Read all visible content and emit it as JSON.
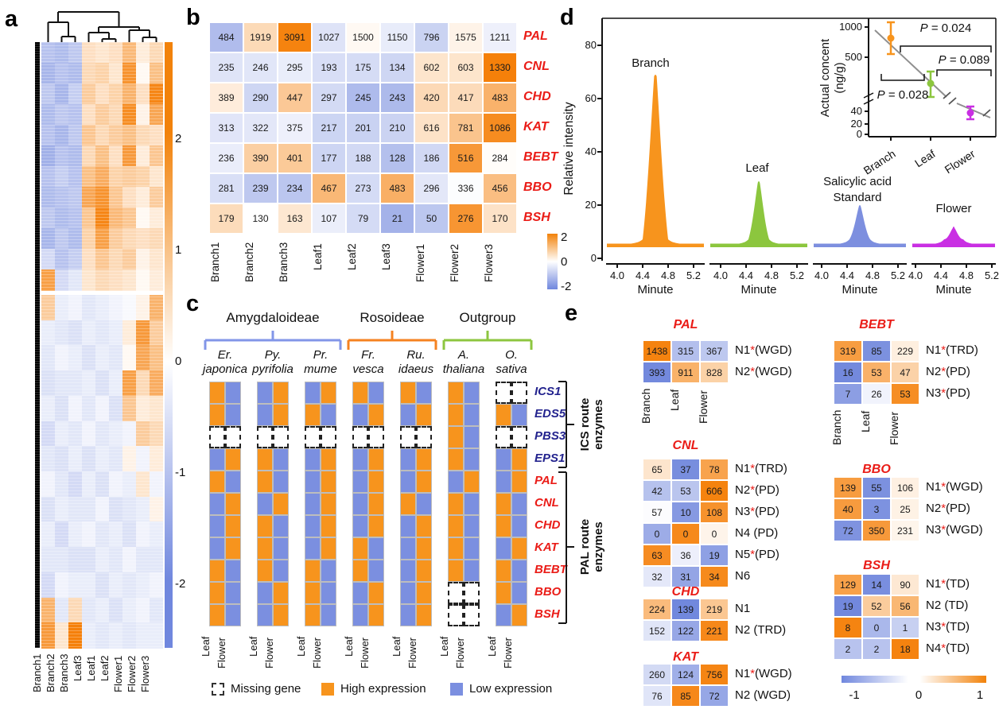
{
  "figure": {
    "panel_a": {
      "label": "a",
      "type": "clustered gene-expression heatmap with column dendrogram",
      "columns": [
        "Branch1",
        "Branch2",
        "Branch3",
        "Leaf3",
        "Leaf1",
        "Leaf2",
        "Flower1",
        "Flower2",
        "Flower3"
      ],
      "colorbar_ticks": [
        "2",
        "1",
        "0",
        "-1",
        "-2"
      ],
      "upper_rows": [
        [
          -1.0,
          -1.1,
          -0.9,
          0.5,
          0.4,
          0.5,
          1.1,
          0.3,
          0.6
        ],
        [
          -1.2,
          -1.0,
          -1.1,
          0.6,
          0.7,
          0.4,
          1.7,
          0.1,
          1.0
        ],
        [
          -0.9,
          -1.2,
          -0.8,
          0.8,
          0.5,
          0.7,
          1.2,
          0.5,
          1.9
        ],
        [
          -1.1,
          -0.9,
          -1.0,
          0.5,
          0.8,
          0.6,
          1.8,
          0.2,
          1.4
        ],
        [
          -1.0,
          -1.2,
          -0.9,
          0.9,
          0.6,
          0.8,
          1.0,
          0.6,
          0.5
        ],
        [
          -1.3,
          -1.0,
          -1.1,
          0.6,
          1.0,
          0.5,
          1.6,
          0.3,
          0.9
        ],
        [
          -1.0,
          -0.8,
          -1.0,
          1.0,
          1.3,
          0.7,
          0.8,
          0.7,
          0.4
        ],
        [
          -1.1,
          -1.0,
          -0.9,
          1.4,
          1.7,
          0.9,
          0.5,
          0.3,
          0.8
        ],
        [
          -0.9,
          -1.1,
          -1.0,
          0.9,
          1.9,
          1.1,
          0.9,
          0.1,
          0.3
        ],
        [
          -1.2,
          -0.9,
          -1.1,
          0.7,
          1.5,
          0.8,
          0.6,
          0.5,
          0.6
        ],
        [
          -0.6,
          -1.0,
          -0.8,
          0.5,
          0.9,
          0.6,
          0.8,
          0.2,
          0.4
        ],
        [
          1.5,
          -0.6,
          -0.4,
          0.4,
          0.6,
          0.5,
          0.4,
          0.1,
          0.3
        ]
      ],
      "lower_rows": [
        [
          0.8,
          -0.3,
          -0.2,
          -0.4,
          -0.3,
          -0.2,
          -0.1,
          0.2,
          1.2
        ],
        [
          -0.3,
          -0.4,
          -0.5,
          -0.3,
          -0.4,
          -0.3,
          0.3,
          1.6,
          0.8
        ],
        [
          -0.4,
          -0.2,
          -0.3,
          -0.5,
          -0.3,
          -0.4,
          0.1,
          1.4,
          1.0
        ],
        [
          -0.5,
          -0.4,
          -0.4,
          -0.3,
          -0.5,
          -0.3,
          1.5,
          0.6,
          1.3
        ],
        [
          -0.3,
          -0.5,
          -0.2,
          -0.4,
          -0.2,
          -0.5,
          0.9,
          0.3,
          0.4
        ],
        [
          -0.6,
          -0.3,
          -0.4,
          -0.2,
          -0.4,
          -0.3,
          -0.2,
          0.8,
          0.6
        ],
        [
          -0.4,
          -0.5,
          -0.3,
          -0.5,
          -0.3,
          -0.4,
          0.2,
          -0.2,
          0.3
        ],
        [
          -0.2,
          -0.4,
          -0.6,
          -0.3,
          -0.5,
          -0.2,
          -0.3,
          0.4,
          -0.2
        ],
        [
          -0.5,
          -0.3,
          -0.4,
          -0.4,
          -0.2,
          -0.5,
          -0.4,
          -0.3,
          0.2
        ],
        [
          -0.3,
          -0.6,
          -0.3,
          -0.2,
          -0.4,
          -0.3,
          -0.5,
          -0.2,
          -0.3
        ],
        [
          -0.4,
          -0.4,
          -0.5,
          -0.5,
          -0.3,
          -0.4,
          -0.2,
          -0.4,
          -0.4
        ],
        [
          -0.6,
          -0.2,
          -0.3,
          -0.3,
          -0.5,
          -0.3,
          -0.4,
          -0.3,
          -0.2
        ],
        [
          1.2,
          -0.4,
          0.6,
          -0.4,
          -0.3,
          -0.5,
          -0.3,
          -0.2,
          -0.4
        ],
        [
          1.6,
          0.4,
          2.0,
          -0.3,
          -0.4,
          -0.3,
          -0.4,
          -0.3,
          -0.3
        ]
      ]
    },
    "panel_b": {
      "label": "b",
      "type": "numeric expression heatmap, row z-score colored",
      "columns": [
        "Branch1",
        "Branch2",
        "Branch3",
        "Leaf1",
        "Leaf2",
        "Leaf3",
        "Flower1",
        "Flower2",
        "Flower3"
      ],
      "rows": [
        {
          "gene": "PAL",
          "values": [
            484,
            1919,
            3091,
            1027,
            1500,
            1150,
            796,
            1575,
            1211
          ]
        },
        {
          "gene": "CNL",
          "values": [
            235,
            246,
            295,
            193,
            175,
            134,
            602,
            603,
            1330
          ]
        },
        {
          "gene": "CHD",
          "values": [
            389,
            290,
            447,
            297,
            245,
            243,
            420,
            417,
            483
          ]
        },
        {
          "gene": "KAT",
          "values": [
            313,
            322,
            375,
            217,
            201,
            210,
            616,
            781,
            1086
          ]
        },
        {
          "gene": "BEBT",
          "values": [
            236,
            390,
            401,
            177,
            188,
            128,
            186,
            516,
            284
          ]
        },
        {
          "gene": "BBO",
          "values": [
            281,
            239,
            234,
            467,
            273,
            483,
            296,
            336,
            456
          ]
        },
        {
          "gene": "BSH",
          "values": [
            179,
            130,
            163,
            107,
            79,
            21,
            50,
            276,
            170
          ]
        }
      ],
      "colorbar_ticks": [
        "2",
        "0",
        "-2"
      ]
    },
    "panel_c": {
      "label": "c",
      "groups": [
        {
          "name": "Amygdaloideae",
          "color": "#8296e8",
          "species": [
            [
              "Er.",
              "japonica"
            ],
            [
              "Py.",
              "pyrifolia"
            ],
            [
              "Pr.",
              "mume"
            ]
          ]
        },
        {
          "name": "Rosoideae",
          "color": "#f58220",
          "species": [
            [
              "Fr.",
              "vesca"
            ],
            [
              "Ru.",
              "idaeus"
            ]
          ]
        },
        {
          "name": "Outgroup",
          "color": "#8dc63f",
          "species": [
            [
              "A.",
              "thaliana"
            ],
            [
              "O.",
              "sativa"
            ]
          ]
        }
      ],
      "col_sublabels": [
        "Leaf",
        "Flower"
      ],
      "route_brackets": [
        {
          "label": "ICS route enzymes",
          "rows": 4
        },
        {
          "label": "PAL route enzymes",
          "rows": 7
        }
      ],
      "genes": [
        {
          "name": "ICS1",
          "class": "ics",
          "cells": [
            "HL",
            "LH",
            "LH",
            "HL",
            "HL",
            "HL",
            "MM"
          ]
        },
        {
          "name": "EDS5",
          "class": "ics",
          "cells": [
            "HL",
            "LH",
            "HL",
            "LH",
            "LH",
            "HL",
            "HL"
          ]
        },
        {
          "name": "PBS3",
          "class": "ics",
          "cells": [
            "MM",
            "MM",
            "MM",
            "MM",
            "MM",
            "HL",
            "MM"
          ]
        },
        {
          "name": "EPS1",
          "class": "ics",
          "cells": [
            "LH",
            "HL",
            "LH",
            "LH",
            "LH",
            "HL",
            "LH"
          ]
        },
        {
          "name": "PAL",
          "class": "pal",
          "cells": [
            "HL",
            "HL",
            "LH",
            "LH",
            "LH",
            "LH",
            "LH"
          ]
        },
        {
          "name": "CNL",
          "class": "pal",
          "cells": [
            "LH",
            "LH",
            "LH",
            "LH",
            "HL",
            "HL",
            "HL"
          ]
        },
        {
          "name": "CHD",
          "class": "pal",
          "cells": [
            "LH",
            "HL",
            "LH",
            "LH",
            "LH",
            "HL",
            "HL"
          ]
        },
        {
          "name": "KAT",
          "class": "pal",
          "cells": [
            "LH",
            "HL",
            "LH",
            "HL",
            "LH",
            "HL",
            "LH"
          ]
        },
        {
          "name": "BEBT",
          "class": "pal",
          "cells": [
            "HL",
            "HL",
            "HL",
            "HL",
            "LH",
            "HL",
            "HL"
          ]
        },
        {
          "name": "BBO",
          "class": "pal",
          "cells": [
            "HL",
            "LH",
            "HL",
            "LH",
            "LH",
            "MM",
            "HL"
          ]
        },
        {
          "name": "BSH",
          "class": "pal",
          "cells": [
            "HL",
            "LH",
            "HL",
            "LH",
            "LH",
            "MM",
            "LH"
          ]
        }
      ],
      "legend": [
        {
          "label": "Missing gene",
          "type": "missing"
        },
        {
          "label": "High expression",
          "type": "high",
          "color": "#f7941d"
        },
        {
          "label": "Low expression",
          "type": "low",
          "color": "#7b8fe0"
        }
      ]
    },
    "panel_d": {
      "label": "d",
      "ylabel": "Relative intensity",
      "yticks": [
        0,
        20,
        40,
        60,
        80
      ],
      "xlabel": "Minute",
      "xticks": [
        "4.0",
        "4.4",
        "4.8",
        "5.2"
      ],
      "traces": [
        {
          "name": "Branch",
          "color": "#f7941d",
          "peak_intensity": 69
        },
        {
          "name": "Leaf",
          "color": "#8cc63e",
          "peak_intensity": 29
        },
        {
          "name": "Salicylic acid Standard",
          "name_lines": [
            "Salicylic acid",
            "Standard"
          ],
          "color": "#7d8fdf",
          "peak_intensity": 20
        },
        {
          "name": "Flower",
          "color": "#c92fe3",
          "peak_intensity": 12
        }
      ],
      "inset": {
        "ylabel_lines": [
          "Actual concent",
          "(ng/g)"
        ],
        "yticks_upper": [
          "1000",
          "500"
        ],
        "yticks_lower": [
          "40",
          "20",
          "0"
        ],
        "categories": [
          "Branch",
          "Leaf",
          "Flower"
        ],
        "points": [
          {
            "name": "Branch",
            "color": "#f7941d",
            "value": 780,
            "err": 200
          },
          {
            "name": "Leaf",
            "color": "#8cc63e",
            "value": 330,
            "err": 110
          },
          {
            "name": "Flower",
            "color": "#c92fe3",
            "value": 48,
            "err": 8
          }
        ],
        "p_values": [
          "P = 0.024",
          "P = 0.089",
          "P = 0.028"
        ]
      }
    },
    "panel_e": {
      "label": "e",
      "columns": [
        "Branch",
        "Leaf",
        "Flower"
      ],
      "colorbar_ticks": [
        "-1",
        "0",
        "1"
      ],
      "blocks": [
        {
          "gene": "PAL",
          "col": "left",
          "show_col_labels": true,
          "rows": [
            {
              "name": "N1",
              "star": true,
              "dup": "(WGD)",
              "values": [
                1438,
                315,
                367
              ]
            },
            {
              "name": "N2",
              "star": true,
              "dup": "(WGD)",
              "values": [
                393,
                911,
                828
              ]
            }
          ]
        },
        {
          "gene": "CNL",
          "col": "left",
          "rows": [
            {
              "name": "N1",
              "star": true,
              "dup": "(TRD)",
              "values": [
                65,
                37,
                78
              ]
            },
            {
              "name": "N2",
              "star": true,
              "dup": "(PD)",
              "values": [
                42,
                53,
                606
              ]
            },
            {
              "name": "N3",
              "star": true,
              "dup": "(PD)",
              "values": [
                57,
                10,
                108
              ]
            },
            {
              "name": "N4",
              "star": false,
              "dup": "(PD)",
              "values": [
                0,
                0,
                0
              ],
              "norm": [
                -0.8,
                1.1,
                0.1
              ]
            },
            {
              "name": "N5",
              "star": true,
              "dup": "(PD)",
              "values": [
                63,
                36,
                19
              ]
            },
            {
              "name": "N6",
              "star": false,
              "dup": "",
              "values": [
                32,
                31,
                34
              ]
            }
          ]
        },
        {
          "gene": "CHD",
          "col": "left",
          "rows": [
            {
              "name": "N1",
              "star": false,
              "dup": "",
              "values": [
                224,
                139,
                219
              ]
            },
            {
              "name": "N2",
              "star": false,
              "dup": "(TRD)",
              "values": [
                152,
                122,
                221
              ]
            }
          ]
        },
        {
          "gene": "KAT",
          "col": "left",
          "rows": [
            {
              "name": "N1",
              "star": true,
              "dup": "(WGD)",
              "values": [
                260,
                124,
                756
              ]
            },
            {
              "name": "N2",
              "star": false,
              "dup": "(WGD)",
              "values": [
                76,
                85,
                72
              ]
            }
          ]
        },
        {
          "gene": "BEBT",
          "col": "right",
          "show_col_labels": true,
          "rows": [
            {
              "name": "N1",
              "star": true,
              "dup": "(TRD)",
              "values": [
                319,
                85,
                229
              ]
            },
            {
              "name": "N2",
              "star": true,
              "dup": "(PD)",
              "values": [
                16,
                53,
                47
              ]
            },
            {
              "name": "N3",
              "star": true,
              "dup": "(PD)",
              "values": [
                7,
                26,
                53
              ]
            }
          ]
        },
        {
          "gene": "BBO",
          "col": "right",
          "rows": [
            {
              "name": "N1",
              "star": true,
              "dup": "(WGD)",
              "values": [
                139,
                55,
                106
              ]
            },
            {
              "name": "N2",
              "star": true,
              "dup": "(PD)",
              "values": [
                40,
                3,
                25
              ]
            },
            {
              "name": "N3",
              "star": true,
              "dup": "(WGD)",
              "values": [
                72,
                350,
                231
              ]
            }
          ]
        },
        {
          "gene": "BSH",
          "col": "right",
          "rows": [
            {
              "name": "N1",
              "star": true,
              "dup": "(TD)",
              "values": [
                129,
                14,
                90
              ]
            },
            {
              "name": "N2",
              "star": false,
              "dup": "(TD)",
              "values": [
                19,
                52,
                56
              ]
            },
            {
              "name": "N3",
              "star": true,
              "dup": "(TD)",
              "values": [
                8,
                0,
                1
              ]
            },
            {
              "name": "N4",
              "star": true,
              "dup": "(TD)",
              "values": [
                2,
                2,
                18
              ]
            }
          ]
        }
      ]
    },
    "colors": {
      "orange_max": "#f2820a",
      "blue_max": "#7087de",
      "gene_red": "#ea1c17",
      "gene_navy": "#23238e"
    }
  }
}
